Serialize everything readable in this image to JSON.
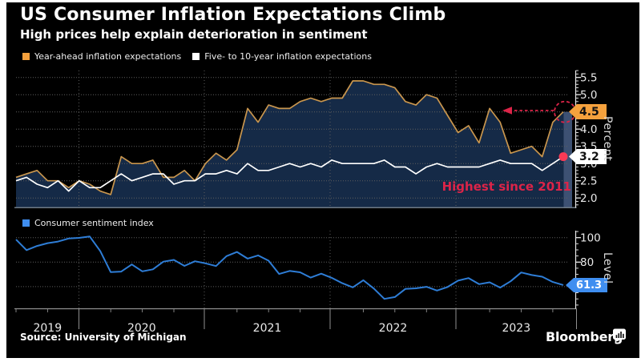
{
  "header": {
    "title": "US Consumer Inflation Expectations Climb",
    "subtitle": "High prices help explain deterioration in sentiment"
  },
  "footer": {
    "source": "Source: University of Michigan",
    "brand": "Bloomberg"
  },
  "colors": {
    "background": "#000000",
    "accent_orange": "#f5a13d",
    "line_orange": "#c9964e",
    "line_white": "#ffffff",
    "line_blue": "#2e7dd6",
    "accent_blue": "#3f8ef0",
    "area_fill": "#152a47",
    "area_fill_current": "#3d5173",
    "annotation_red": "#dc2448",
    "red_dot": "#fa3a55",
    "grid": "#5e5e5e",
    "axis_white": "#e8e8e8",
    "axis_gray": "#8f8f8f",
    "spine_gray": "#6e7a85",
    "tick_text": "#e9e9e9"
  },
  "x_axis": {
    "year_labels": [
      "2019",
      "2020",
      "2021",
      "2022",
      "2023"
    ],
    "start": "2019-07",
    "end": "2023-11",
    "frequency": "monthly"
  },
  "chart_data": [
    {
      "type": "area",
      "name": "Inflation expectations",
      "unit": "Percent",
      "ylim": [
        2.0,
        5.5
      ],
      "yticks": [
        "5.5",
        "5.0",
        "4.5",
        "4.0",
        "3.5",
        "3.0",
        "2.5",
        "2.0"
      ],
      "grid": true,
      "legend_position": "top-left",
      "annotation": "Highest since 2011",
      "series": [
        {
          "name": "Year-ahead inflation expectations",
          "end_label": "4.5",
          "values": [
            2.6,
            2.7,
            2.8,
            2.5,
            2.5,
            2.3,
            2.5,
            2.4,
            2.2,
            2.1,
            3.2,
            3.0,
            3.0,
            3.1,
            2.6,
            2.6,
            2.8,
            2.5,
            3.0,
            3.3,
            3.1,
            3.4,
            4.6,
            4.2,
            4.7,
            4.6,
            4.6,
            4.8,
            4.9,
            4.8,
            4.9,
            4.9,
            5.4,
            5.4,
            5.3,
            5.3,
            5.2,
            4.8,
            4.7,
            5.0,
            4.9,
            4.4,
            3.9,
            4.1,
            3.6,
            4.6,
            4.2,
            3.3,
            3.4,
            3.5,
            3.2,
            4.2,
            4.5
          ]
        },
        {
          "name": "Five- to 10-year inflation expectations",
          "end_label": "3.2",
          "values": [
            2.5,
            2.6,
            2.4,
            2.3,
            2.5,
            2.2,
            2.5,
            2.3,
            2.3,
            2.5,
            2.7,
            2.5,
            2.6,
            2.7,
            2.7,
            2.4,
            2.5,
            2.5,
            2.7,
            2.7,
            2.8,
            2.7,
            3.0,
            2.8,
            2.8,
            2.9,
            3.0,
            2.9,
            3.0,
            2.9,
            3.1,
            3.0,
            3.0,
            3.0,
            3.0,
            3.1,
            2.9,
            2.9,
            2.7,
            2.9,
            3.0,
            2.9,
            2.9,
            2.9,
            2.9,
            3.0,
            3.1,
            3.0,
            3.0,
            3.0,
            2.8,
            3.0,
            3.2
          ]
        }
      ]
    },
    {
      "type": "line",
      "name": "Consumer sentiment",
      "unit": "Level",
      "ylim": [
        45,
        105
      ],
      "yticks": [
        "100",
        "80",
        "60"
      ],
      "grid": true,
      "legend_position": "top-left",
      "series": [
        {
          "name": "Consumer sentiment index",
          "end_label": "61.3",
          "values": [
            98.4,
            89.8,
            93.2,
            95.5,
            96.8,
            99.3,
            99.8,
            101.0,
            89.1,
            71.8,
            72.3,
            78.1,
            72.5,
            74.1,
            80.4,
            81.8,
            76.9,
            80.7,
            79.0,
            76.8,
            84.9,
            88.3,
            82.9,
            85.5,
            81.2,
            70.3,
            72.8,
            71.7,
            67.4,
            70.6,
            67.2,
            62.8,
            59.4,
            65.2,
            58.4,
            50.0,
            51.5,
            58.2,
            58.6,
            59.9,
            56.8,
            59.7,
            64.9,
            67.0,
            62.0,
            63.5,
            59.2,
            64.4,
            71.6,
            69.5,
            68.1,
            63.8,
            61.3
          ]
        }
      ]
    }
  ]
}
